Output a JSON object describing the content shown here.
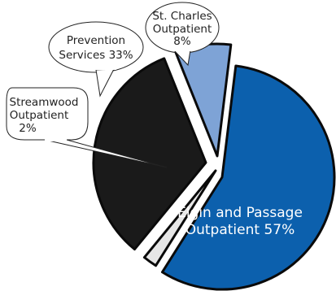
{
  "chart_data": {
    "type": "pie",
    "title": "",
    "slices": [
      {
        "label_lines": [
          "Elgin and Passage",
          "Outpatient 57%"
        ],
        "label": "Elgin and Passage Outpatient",
        "value": 57,
        "color": "#0c60ad"
      },
      {
        "label_lines": [
          "Streamwood",
          "Outpatient",
          "2%"
        ],
        "label": "Streamwood Outpatient",
        "value": 2,
        "color": "#e6e6e6"
      },
      {
        "label_lines": [
          "Prevention",
          "Services 33%"
        ],
        "label": "Prevention Services",
        "value": 33,
        "color": "#1a1a1a"
      },
      {
        "label_lines": [
          "St. Charles",
          "Outpatient",
          "8%"
        ],
        "label": "St. Charles Outpatient",
        "value": 8,
        "color": "#7ea3d6"
      }
    ]
  }
}
